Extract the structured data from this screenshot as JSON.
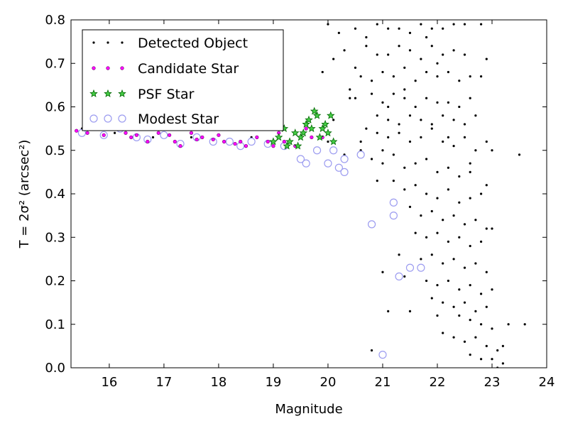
{
  "chart_data": {
    "type": "scatter",
    "xlabel": "Magnitude",
    "ylabel": "T = 2σ² (arcsec²)",
    "xlim": [
      15.3,
      24
    ],
    "ylim": [
      0.0,
      0.8
    ],
    "x_ticks": [
      16,
      17,
      18,
      19,
      20,
      21,
      22,
      23,
      24
    ],
    "y_ticks": [
      0.0,
      0.1,
      0.2,
      0.3,
      0.4,
      0.5,
      0.6,
      0.7,
      0.8
    ],
    "x_tick_labels": [
      "16",
      "17",
      "18",
      "19",
      "20",
      "21",
      "22",
      "23",
      "24"
    ],
    "y_tick_labels": [
      "0.0",
      "0.1",
      "0.2",
      "0.3",
      "0.4",
      "0.5",
      "0.6",
      "0.7",
      "0.8"
    ],
    "grid": false,
    "legend_position": "top-left",
    "series": [
      {
        "name": "Detected Object",
        "marker": "dot",
        "color": "#000000",
        "points": [
          [
            15.5,
            0.55
          ],
          [
            16.1,
            0.54
          ],
          [
            16.8,
            0.53
          ],
          [
            17.5,
            0.53
          ],
          [
            18.1,
            0.52
          ],
          [
            18.6,
            0.53
          ],
          [
            19.0,
            0.52
          ],
          [
            19.6,
            0.55
          ],
          [
            20.0,
            0.52
          ],
          [
            20.3,
            0.49
          ],
          [
            20.6,
            0.5
          ],
          [
            20.1,
            0.57
          ],
          [
            20.4,
            0.62
          ],
          [
            20.0,
            0.79
          ],
          [
            20.2,
            0.77
          ],
          [
            20.5,
            0.78
          ],
          [
            20.7,
            0.76
          ],
          [
            20.9,
            0.79
          ],
          [
            21.1,
            0.78
          ],
          [
            21.3,
            0.78
          ],
          [
            21.5,
            0.77
          ],
          [
            21.7,
            0.79
          ],
          [
            21.9,
            0.78
          ],
          [
            22.1,
            0.78
          ],
          [
            22.3,
            0.79
          ],
          [
            22.5,
            0.79
          ],
          [
            22.8,
            0.79
          ],
          [
            19.9,
            0.68
          ],
          [
            20.1,
            0.71
          ],
          [
            20.3,
            0.73
          ],
          [
            20.5,
            0.69
          ],
          [
            20.7,
            0.74
          ],
          [
            20.9,
            0.72
          ],
          [
            21.1,
            0.72
          ],
          [
            21.3,
            0.74
          ],
          [
            21.5,
            0.73
          ],
          [
            21.7,
            0.71
          ],
          [
            21.9,
            0.74
          ],
          [
            22.1,
            0.72
          ],
          [
            22.3,
            0.73
          ],
          [
            22.5,
            0.72
          ],
          [
            22.9,
            0.71
          ],
          [
            20.6,
            0.67
          ],
          [
            20.8,
            0.66
          ],
          [
            21.0,
            0.68
          ],
          [
            21.2,
            0.67
          ],
          [
            21.4,
            0.69
          ],
          [
            21.6,
            0.66
          ],
          [
            21.8,
            0.68
          ],
          [
            22.0,
            0.67
          ],
          [
            22.2,
            0.68
          ],
          [
            22.4,
            0.66
          ],
          [
            22.6,
            0.67
          ],
          [
            22.8,
            0.67
          ],
          [
            20.5,
            0.62
          ],
          [
            20.8,
            0.63
          ],
          [
            21.0,
            0.61
          ],
          [
            21.2,
            0.63
          ],
          [
            21.4,
            0.62
          ],
          [
            21.6,
            0.6
          ],
          [
            21.8,
            0.62
          ],
          [
            22.0,
            0.61
          ],
          [
            22.2,
            0.61
          ],
          [
            22.4,
            0.6
          ],
          [
            22.6,
            0.62
          ],
          [
            20.9,
            0.58
          ],
          [
            21.1,
            0.57
          ],
          [
            21.3,
            0.56
          ],
          [
            21.5,
            0.58
          ],
          [
            21.7,
            0.57
          ],
          [
            21.9,
            0.56
          ],
          [
            22.1,
            0.58
          ],
          [
            22.3,
            0.57
          ],
          [
            22.5,
            0.56
          ],
          [
            22.7,
            0.58
          ],
          [
            20.7,
            0.55
          ],
          [
            20.9,
            0.54
          ],
          [
            21.1,
            0.53
          ],
          [
            21.3,
            0.54
          ],
          [
            21.5,
            0.52
          ],
          [
            21.7,
            0.53
          ],
          [
            21.9,
            0.55
          ],
          [
            22.1,
            0.52
          ],
          [
            22.3,
            0.51
          ],
          [
            22.5,
            0.53
          ],
          [
            22.7,
            0.5
          ],
          [
            22.9,
            0.52
          ],
          [
            23.5,
            0.49
          ],
          [
            23.0,
            0.5
          ],
          [
            20.8,
            0.48
          ],
          [
            21.0,
            0.47
          ],
          [
            21.2,
            0.49
          ],
          [
            21.4,
            0.46
          ],
          [
            21.6,
            0.47
          ],
          [
            21.8,
            0.48
          ],
          [
            22.0,
            0.45
          ],
          [
            22.2,
            0.46
          ],
          [
            22.4,
            0.44
          ],
          [
            22.6,
            0.47
          ],
          [
            21.2,
            0.43
          ],
          [
            21.4,
            0.41
          ],
          [
            21.6,
            0.42
          ],
          [
            21.8,
            0.4
          ],
          [
            22.0,
            0.39
          ],
          [
            22.2,
            0.41
          ],
          [
            22.4,
            0.38
          ],
          [
            22.6,
            0.39
          ],
          [
            22.8,
            0.4
          ],
          [
            21.5,
            0.37
          ],
          [
            21.7,
            0.35
          ],
          [
            21.9,
            0.36
          ],
          [
            22.1,
            0.34
          ],
          [
            22.3,
            0.35
          ],
          [
            22.5,
            0.33
          ],
          [
            22.7,
            0.34
          ],
          [
            22.9,
            0.32
          ],
          [
            21.6,
            0.31
          ],
          [
            21.8,
            0.3
          ],
          [
            22.0,
            0.31
          ],
          [
            22.2,
            0.29
          ],
          [
            22.4,
            0.3
          ],
          [
            22.6,
            0.28
          ],
          [
            22.8,
            0.29
          ],
          [
            23.0,
            0.32
          ],
          [
            21.3,
            0.26
          ],
          [
            21.7,
            0.25
          ],
          [
            21.9,
            0.26
          ],
          [
            22.1,
            0.24
          ],
          [
            22.3,
            0.25
          ],
          [
            22.5,
            0.23
          ],
          [
            22.7,
            0.24
          ],
          [
            22.9,
            0.22
          ],
          [
            21.0,
            0.22
          ],
          [
            21.4,
            0.21
          ],
          [
            21.8,
            0.2
          ],
          [
            22.0,
            0.19
          ],
          [
            22.2,
            0.2
          ],
          [
            22.4,
            0.18
          ],
          [
            22.6,
            0.19
          ],
          [
            22.8,
            0.17
          ],
          [
            23.0,
            0.18
          ],
          [
            21.9,
            0.16
          ],
          [
            22.1,
            0.15
          ],
          [
            22.3,
            0.14
          ],
          [
            22.5,
            0.15
          ],
          [
            22.7,
            0.13
          ],
          [
            22.9,
            0.14
          ],
          [
            21.1,
            0.13
          ],
          [
            21.5,
            0.13
          ],
          [
            22.0,
            0.12
          ],
          [
            22.4,
            0.12
          ],
          [
            22.6,
            0.11
          ],
          [
            22.8,
            0.1
          ],
          [
            23.0,
            0.09
          ],
          [
            23.3,
            0.1
          ],
          [
            23.6,
            0.1
          ],
          [
            22.1,
            0.08
          ],
          [
            22.3,
            0.07
          ],
          [
            22.5,
            0.06
          ],
          [
            22.7,
            0.07
          ],
          [
            22.9,
            0.05
          ],
          [
            23.1,
            0.04
          ],
          [
            23.2,
            0.05
          ],
          [
            20.8,
            0.04
          ],
          [
            22.6,
            0.03
          ],
          [
            22.8,
            0.02
          ],
          [
            23.0,
            0.02
          ],
          [
            23.2,
            0.01
          ],
          [
            23.1,
            0.0
          ],
          [
            20.9,
            0.43
          ],
          [
            20.6,
            0.52
          ],
          [
            21.1,
            0.6
          ],
          [
            22.0,
            0.7
          ],
          [
            21.8,
            0.76
          ],
          [
            21.4,
            0.64
          ],
          [
            20.4,
            0.64
          ],
          [
            22.2,
            0.53
          ],
          [
            22.6,
            0.45
          ],
          [
            22.9,
            0.42
          ],
          [
            21.0,
            0.5
          ]
        ]
      },
      {
        "name": "Candidate Star",
        "marker": "small-magenta-dot",
        "color": "#ff00ff",
        "points": [
          [
            15.4,
            0.545
          ],
          [
            15.6,
            0.54
          ],
          [
            15.9,
            0.535
          ],
          [
            16.1,
            0.55
          ],
          [
            16.3,
            0.54
          ],
          [
            16.5,
            0.535
          ],
          [
            16.7,
            0.52
          ],
          [
            16.9,
            0.54
          ],
          [
            17.1,
            0.535
          ],
          [
            17.3,
            0.51
          ],
          [
            17.5,
            0.54
          ],
          [
            17.7,
            0.53
          ],
          [
            17.9,
            0.525
          ],
          [
            18.1,
            0.52
          ],
          [
            18.3,
            0.515
          ],
          [
            18.5,
            0.51
          ],
          [
            18.7,
            0.53
          ],
          [
            18.9,
            0.52
          ],
          [
            19.0,
            0.51
          ],
          [
            19.2,
            0.52
          ],
          [
            19.4,
            0.51
          ],
          [
            19.6,
            0.55
          ],
          [
            19.7,
            0.53
          ],
          [
            18.0,
            0.535
          ],
          [
            17.6,
            0.525
          ],
          [
            16.4,
            0.53
          ],
          [
            17.2,
            0.52
          ],
          [
            18.4,
            0.52
          ],
          [
            19.1,
            0.54
          ],
          [
            19.9,
            0.53
          ]
        ]
      },
      {
        "name": "PSF Star",
        "marker": "star",
        "color": "#2ca02c",
        "points": [
          [
            19.0,
            0.52
          ],
          [
            19.1,
            0.53
          ],
          [
            19.2,
            0.55
          ],
          [
            19.3,
            0.52
          ],
          [
            19.4,
            0.54
          ],
          [
            19.5,
            0.53
          ],
          [
            19.6,
            0.56
          ],
          [
            19.7,
            0.55
          ],
          [
            19.8,
            0.58
          ],
          [
            19.9,
            0.55
          ],
          [
            20.0,
            0.54
          ],
          [
            20.1,
            0.52
          ],
          [
            19.45,
            0.51
          ],
          [
            19.65,
            0.57
          ],
          [
            19.85,
            0.53
          ],
          [
            20.05,
            0.58
          ],
          [
            19.25,
            0.51
          ],
          [
            19.55,
            0.54
          ],
          [
            19.75,
            0.59
          ],
          [
            19.95,
            0.56
          ]
        ]
      },
      {
        "name": "Modest Star",
        "marker": "open-circle",
        "color": "#9c9cf0",
        "points": [
          [
            15.5,
            0.54
          ],
          [
            15.9,
            0.535
          ],
          [
            16.2,
            0.55
          ],
          [
            16.5,
            0.53
          ],
          [
            16.7,
            0.525
          ],
          [
            17.0,
            0.535
          ],
          [
            17.3,
            0.515
          ],
          [
            17.6,
            0.53
          ],
          [
            17.9,
            0.52
          ],
          [
            18.2,
            0.52
          ],
          [
            18.4,
            0.51
          ],
          [
            18.6,
            0.52
          ],
          [
            18.9,
            0.515
          ],
          [
            19.2,
            0.51
          ],
          [
            19.5,
            0.48
          ],
          [
            19.8,
            0.5
          ],
          [
            20.1,
            0.5
          ],
          [
            20.3,
            0.48
          ],
          [
            20.2,
            0.46
          ],
          [
            20.6,
            0.49
          ],
          [
            19.6,
            0.47
          ],
          [
            20.0,
            0.47
          ],
          [
            20.3,
            0.45
          ],
          [
            21.2,
            0.38
          ],
          [
            21.2,
            0.35
          ],
          [
            20.8,
            0.33
          ],
          [
            21.3,
            0.21
          ],
          [
            21.5,
            0.23
          ],
          [
            21.7,
            0.23
          ],
          [
            21.0,
            0.03
          ]
        ]
      }
    ]
  }
}
